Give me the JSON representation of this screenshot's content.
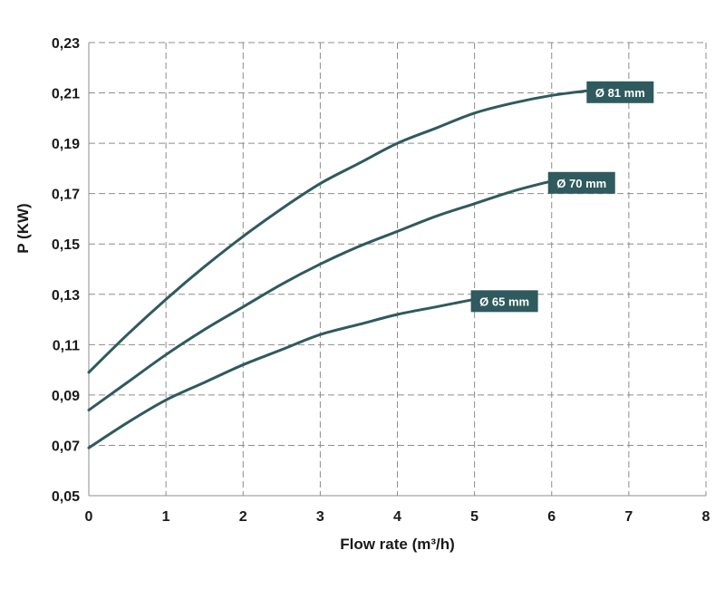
{
  "chart_data": {
    "type": "line",
    "title": "",
    "xlabel": "Flow rate (m³/h)",
    "ylabel": "P (KW)",
    "xlim": [
      0,
      8
    ],
    "ylim": [
      0.05,
      0.23
    ],
    "xticks": [
      0,
      1,
      2,
      3,
      4,
      5,
      6,
      7,
      8
    ],
    "xtick_labels": [
      "0",
      "1",
      "2",
      "3",
      "4",
      "5",
      "6",
      "7",
      "8"
    ],
    "yticks": [
      0.05,
      0.07,
      0.09,
      0.11,
      0.13,
      0.15,
      0.17,
      0.19,
      0.21,
      0.23
    ],
    "ytick_labels": [
      "0,05",
      "0,07",
      "0,09",
      "0,11",
      "0,13",
      "0,15",
      "0,17",
      "0,19",
      "0,21",
      "0,23"
    ],
    "grid": true,
    "line_color": "#2f5a5e",
    "series": [
      {
        "name": "Ø 81 mm",
        "x": [
          0,
          0.5,
          1,
          1.5,
          2,
          2.5,
          3,
          3.5,
          4,
          4.5,
          5,
          5.5,
          6,
          6.5
        ],
        "values": [
          0.099,
          0.114,
          0.128,
          0.141,
          0.153,
          0.164,
          0.174,
          0.182,
          0.19,
          0.196,
          0.202,
          0.206,
          0.209,
          0.211
        ]
      },
      {
        "name": "Ø 70 mm",
        "x": [
          0,
          0.5,
          1,
          1.5,
          2,
          2.5,
          3,
          3.5,
          4,
          4.5,
          5,
          5.5,
          6
        ],
        "values": [
          0.084,
          0.095,
          0.106,
          0.116,
          0.125,
          0.134,
          0.142,
          0.149,
          0.155,
          0.161,
          0.166,
          0.171,
          0.175
        ]
      },
      {
        "name": "Ø 65 mm",
        "x": [
          0,
          0.5,
          1,
          1.5,
          2,
          2.5,
          3,
          3.5,
          4,
          4.5,
          5
        ],
        "values": [
          0.069,
          0.079,
          0.088,
          0.095,
          0.102,
          0.108,
          0.114,
          0.118,
          0.122,
          0.125,
          0.128
        ]
      }
    ]
  }
}
